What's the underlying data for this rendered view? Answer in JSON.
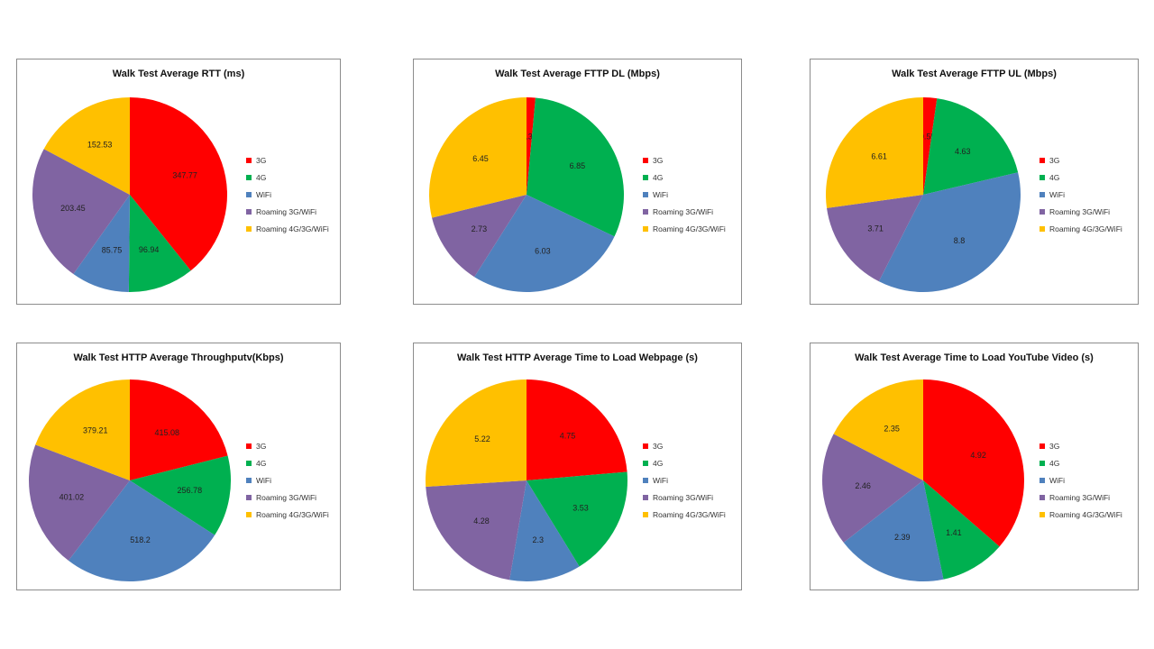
{
  "colors": {
    "3G": "#ff0000",
    "4G": "#00b050",
    "WiFi": "#4f81bd",
    "Roaming 3G/WiFi": "#8064a2",
    "Roaming 4G/3G/WiFi": "#ffc000"
  },
  "chart_data": [
    {
      "type": "pie",
      "title": "Walk Test Average RTT (ms)",
      "categories": [
        "3G",
        "4G",
        "WiFi",
        "Roaming 3G/WiFi",
        "Roaming 4G/3G/WiFi"
      ],
      "values": [
        347.77,
        96.94,
        85.75,
        203.45,
        152.53
      ],
      "labels": [
        "347.77",
        "96.94",
        "85.75",
        "203.45",
        "152.53"
      ],
      "legend": "right"
    },
    {
      "type": "pie",
      "title": "Walk Test Average FTTP DL (Mbps)",
      "categories": [
        "3G",
        "4G",
        "WiFi",
        "Roaming 3G/WiFi",
        "Roaming 4G/3G/WiFi"
      ],
      "values": [
        0.33,
        6.85,
        6.03,
        2.73,
        6.45
      ],
      "labels": [
        "0.33",
        "6.85",
        "6.03",
        "2.73",
        "6.45"
      ],
      "legend": "right"
    },
    {
      "type": "pie",
      "title": "Walk Test Average FTTP UL (Mbps)",
      "categories": [
        "3G",
        "4G",
        "WiFi",
        "Roaming 3G/WiFi",
        "Roaming 4G/3G/WiFi"
      ],
      "values": [
        0.55,
        4.63,
        8.8,
        3.71,
        6.61
      ],
      "labels": [
        "0.55",
        "4.63",
        "8.8",
        "3.71",
        "6.61"
      ],
      "legend": "right"
    },
    {
      "type": "pie",
      "title": "Walk Test HTTP  Average Throughputv(Kbps)",
      "categories": [
        "3G",
        "4G",
        "WiFi",
        "Roaming 3G/WiFi",
        "Roaming 4G/3G/WiFi"
      ],
      "values": [
        415.08,
        256.78,
        518.2,
        401.02,
        379.21
      ],
      "labels": [
        "415.08",
        "256.78",
        "518.2",
        "401.02",
        "379.21"
      ],
      "legend": "right"
    },
    {
      "type": "pie",
      "title": "Walk Test HTTP  Average Time to Load Webpage (s)",
      "categories": [
        "3G",
        "4G",
        "WiFi",
        "Roaming 3G/WiFi",
        "Roaming 4G/3G/WiFi"
      ],
      "values": [
        4.75,
        3.53,
        2.3,
        4.28,
        5.22
      ],
      "labels": [
        "4.75",
        "3.53",
        "2.3",
        "4.28",
        "5.22"
      ],
      "legend": "right"
    },
    {
      "type": "pie",
      "title": "Walk Test Average Time to Load YouTube Video (s)",
      "categories": [
        "3G",
        "4G",
        "WiFi",
        "Roaming 3G/WiFi",
        "Roaming 4G/3G/WiFi"
      ],
      "values": [
        4.92,
        1.41,
        2.39,
        2.46,
        2.35
      ],
      "labels": [
        "4.92",
        "1.41",
        "2.39",
        "2.46",
        "2.35"
      ],
      "legend": "right"
    }
  ]
}
